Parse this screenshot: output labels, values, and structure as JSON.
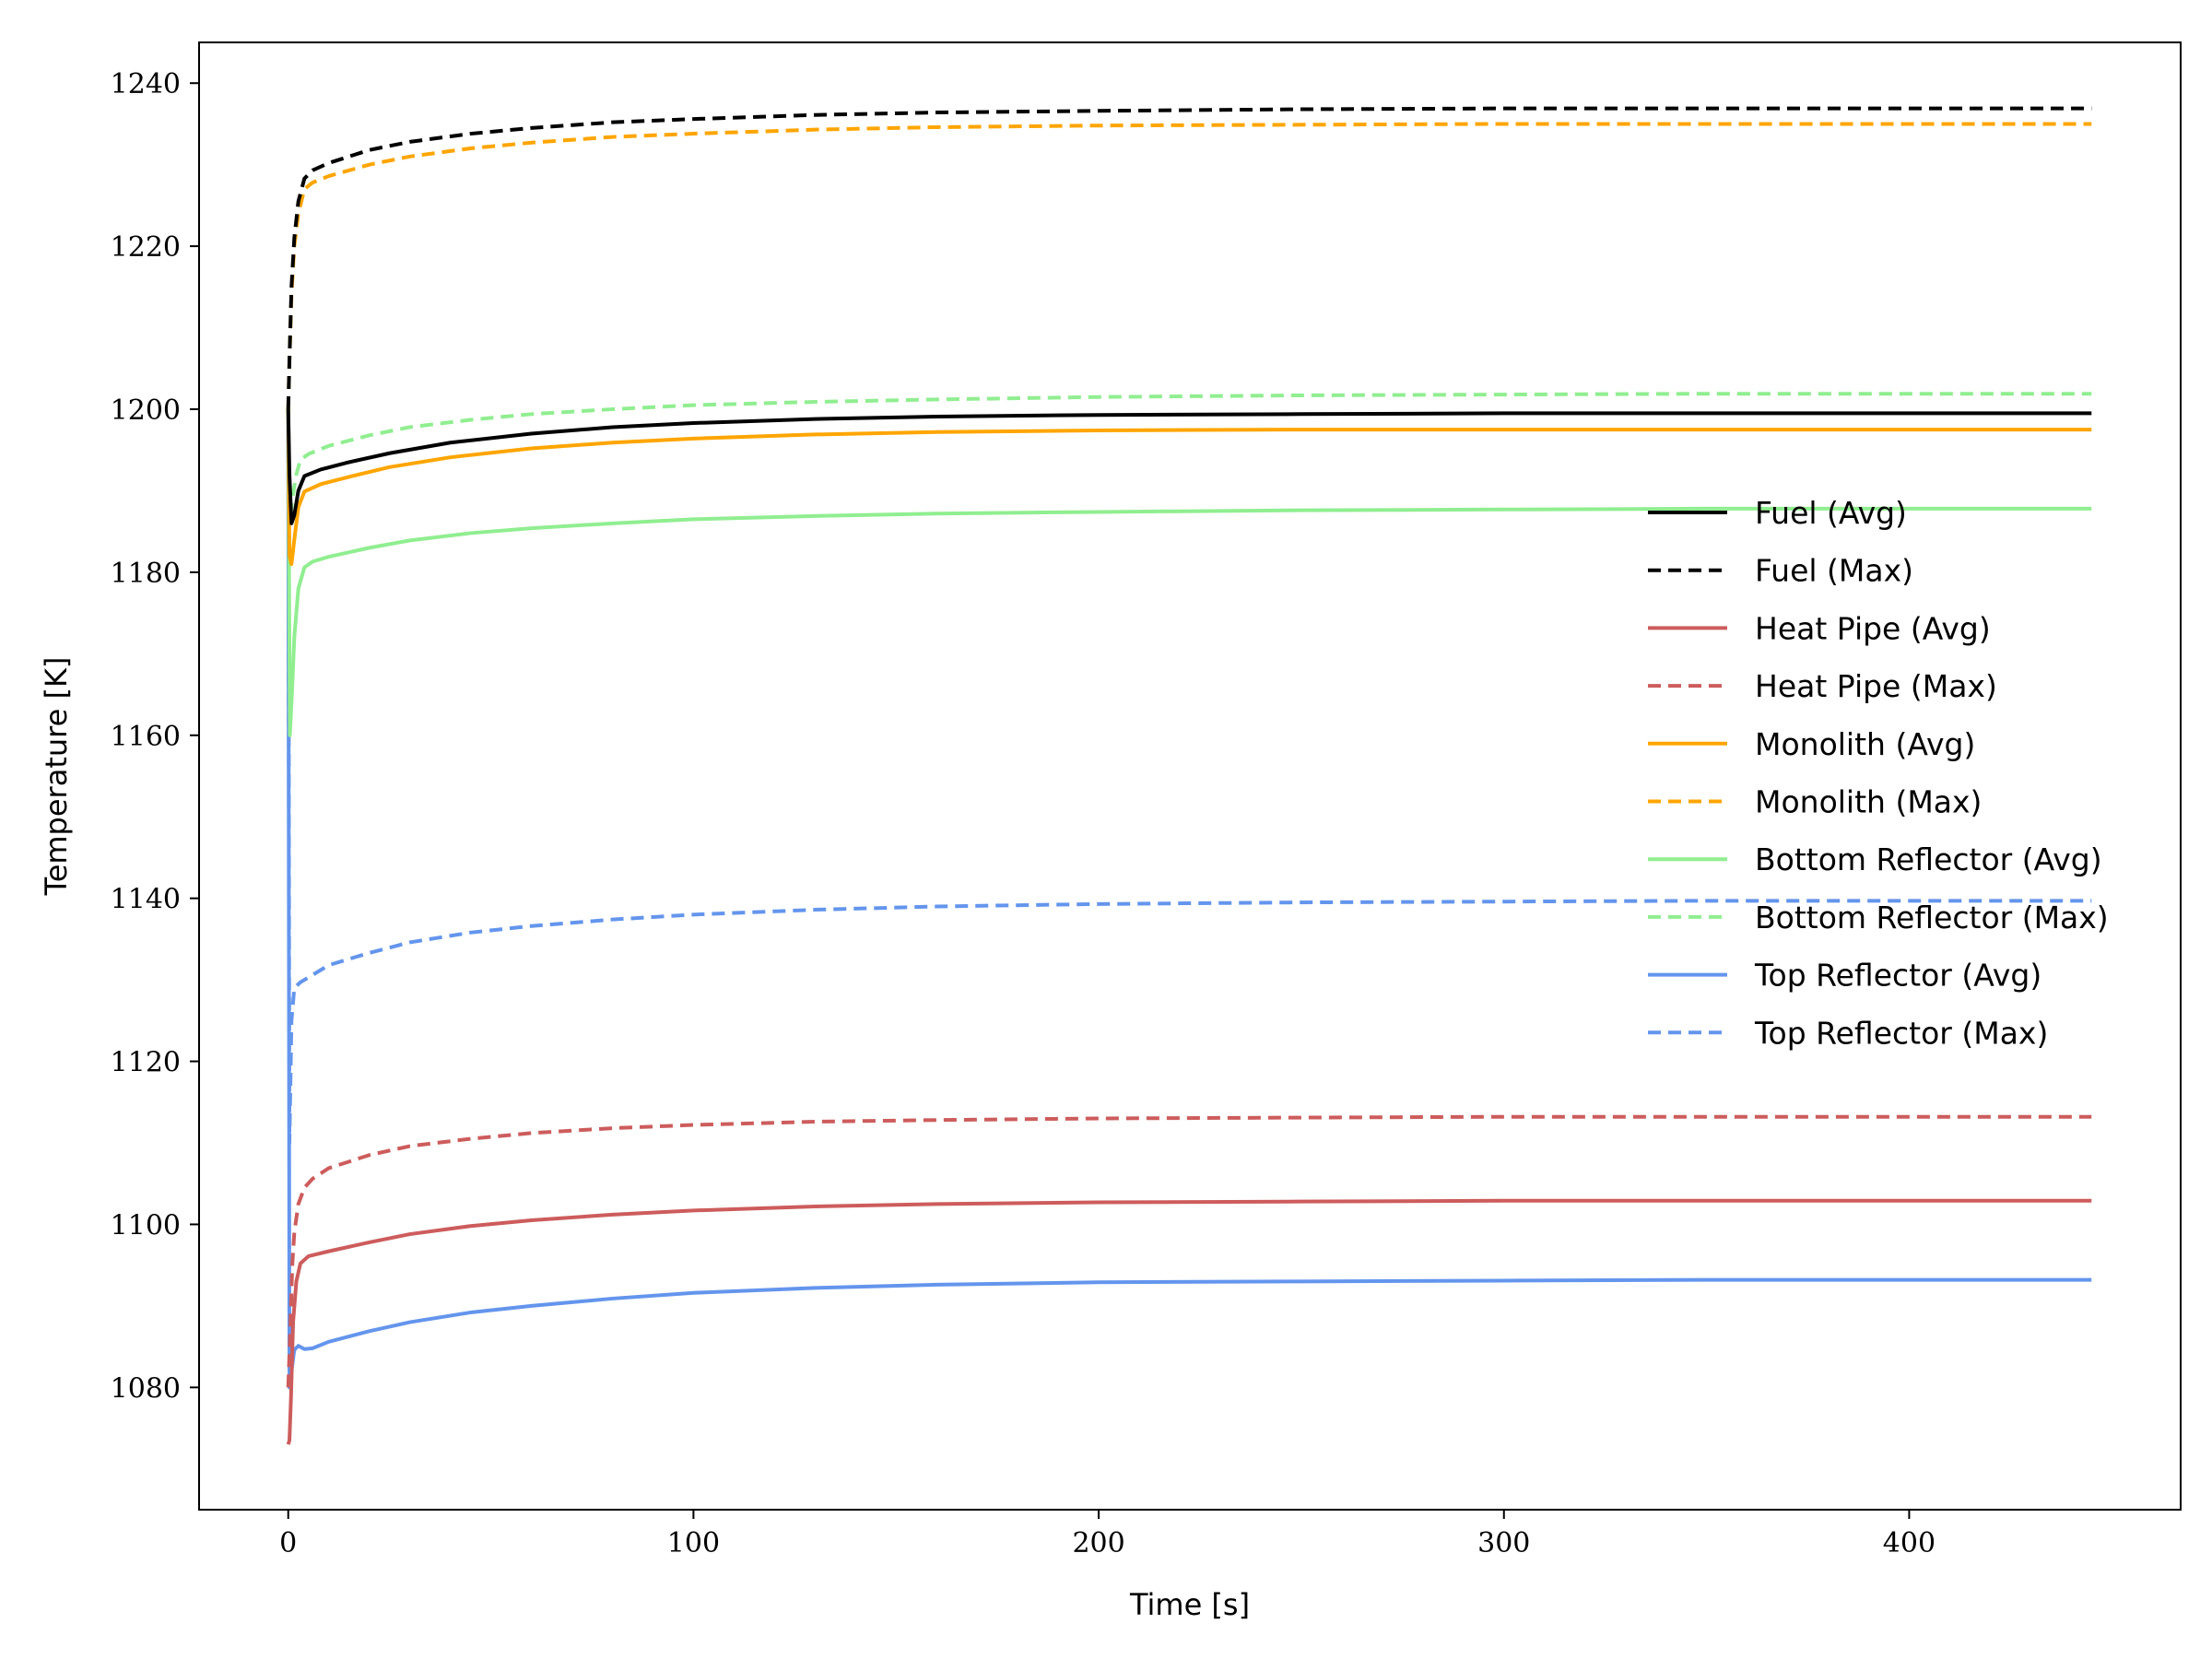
{
  "chart_data": {
    "type": "line",
    "title": "",
    "xlabel": "Time [s]",
    "ylabel": "Temperature [K]",
    "xlim": [
      -22,
      467
    ],
    "ylim": [
      1065,
      1245
    ],
    "xticks": [
      0,
      100,
      200,
      300,
      400
    ],
    "yticks": [
      1080,
      1100,
      1120,
      1140,
      1160,
      1180,
      1200,
      1220,
      1240
    ],
    "grid": false,
    "legend_position": "center-right",
    "series": [
      {
        "name": "Fuel (Avg)",
        "color": "#000000",
        "dash": "solid",
        "points": [
          [
            0,
            1200
          ],
          [
            0.3,
            1192
          ],
          [
            0.8,
            1186
          ],
          [
            1.5,
            1187
          ],
          [
            2.5,
            1190
          ],
          [
            4,
            1191.8
          ],
          [
            8,
            1192.6
          ],
          [
            15,
            1193.5
          ],
          [
            25,
            1194.6
          ],
          [
            40,
            1195.9
          ],
          [
            60,
            1197
          ],
          [
            80,
            1197.8
          ],
          [
            100,
            1198.3
          ],
          [
            130,
            1198.8
          ],
          [
            160,
            1199.1
          ],
          [
            200,
            1199.3
          ],
          [
            250,
            1199.4
          ],
          [
            300,
            1199.5
          ],
          [
            350,
            1199.5
          ],
          [
            400,
            1199.5
          ],
          [
            445,
            1199.5
          ]
        ]
      },
      {
        "name": "Fuel (Max)",
        "color": "#000000",
        "dash": "dashed",
        "points": [
          [
            0,
            1200
          ],
          [
            0.3,
            1206
          ],
          [
            0.8,
            1215
          ],
          [
            1.5,
            1221
          ],
          [
            2.5,
            1225.5
          ],
          [
            4,
            1228.3
          ],
          [
            6,
            1229.3
          ],
          [
            10,
            1230.2
          ],
          [
            20,
            1231.8
          ],
          [
            30,
            1232.8
          ],
          [
            45,
            1233.8
          ],
          [
            60,
            1234.5
          ],
          [
            80,
            1235.2
          ],
          [
            100,
            1235.6
          ],
          [
            130,
            1236.1
          ],
          [
            160,
            1236.4
          ],
          [
            200,
            1236.6
          ],
          [
            250,
            1236.8
          ],
          [
            300,
            1236.9
          ],
          [
            350,
            1236.9
          ],
          [
            400,
            1236.9
          ],
          [
            445,
            1236.9
          ]
        ]
      },
      {
        "name": "Heat Pipe (Avg)",
        "color": "#cd5c5c",
        "dash": "solid",
        "points": [
          [
            0,
            1073
          ],
          [
            0.3,
            1073.5
          ],
          [
            0.7,
            1079
          ],
          [
            1.2,
            1088
          ],
          [
            2,
            1093
          ],
          [
            3,
            1095.2
          ],
          [
            5,
            1096.1
          ],
          [
            10,
            1096.7
          ],
          [
            20,
            1097.8
          ],
          [
            30,
            1098.8
          ],
          [
            45,
            1099.8
          ],
          [
            60,
            1100.5
          ],
          [
            80,
            1101.2
          ],
          [
            100,
            1101.7
          ],
          [
            130,
            1102.2
          ],
          [
            160,
            1102.5
          ],
          [
            200,
            1102.7
          ],
          [
            250,
            1102.8
          ],
          [
            300,
            1102.9
          ],
          [
            350,
            1102.9
          ],
          [
            400,
            1102.9
          ],
          [
            445,
            1102.9
          ]
        ]
      },
      {
        "name": "Heat Pipe (Max)",
        "color": "#cd5c5c",
        "dash": "dashed",
        "points": [
          [
            0,
            1080
          ],
          [
            0.5,
            1087
          ],
          [
            1,
            1095
          ],
          [
            1.5,
            1099
          ],
          [
            2.5,
            1102.5
          ],
          [
            4,
            1104.5
          ],
          [
            6,
            1105.6
          ],
          [
            10,
            1106.9
          ],
          [
            20,
            1108.5
          ],
          [
            30,
            1109.6
          ],
          [
            45,
            1110.5
          ],
          [
            60,
            1111.2
          ],
          [
            80,
            1111.8
          ],
          [
            100,
            1112.2
          ],
          [
            130,
            1112.6
          ],
          [
            160,
            1112.8
          ],
          [
            200,
            1113
          ],
          [
            250,
            1113.1
          ],
          [
            300,
            1113.2
          ],
          [
            350,
            1113.2
          ],
          [
            400,
            1113.2
          ],
          [
            445,
            1113.2
          ]
        ]
      },
      {
        "name": "Monolith (Avg)",
        "color": "#ffa500",
        "dash": "solid",
        "points": [
          [
            0,
            1200
          ],
          [
            0.3,
            1182
          ],
          [
            0.8,
            1181
          ],
          [
            1.5,
            1184
          ],
          [
            2.5,
            1188
          ],
          [
            4,
            1189.9
          ],
          [
            8,
            1190.8
          ],
          [
            15,
            1191.7
          ],
          [
            25,
            1192.9
          ],
          [
            40,
            1194.1
          ],
          [
            60,
            1195.2
          ],
          [
            80,
            1195.9
          ],
          [
            100,
            1196.4
          ],
          [
            130,
            1196.9
          ],
          [
            160,
            1197.2
          ],
          [
            200,
            1197.4
          ],
          [
            250,
            1197.5
          ],
          [
            300,
            1197.5
          ],
          [
            350,
            1197.5
          ],
          [
            400,
            1197.5
          ],
          [
            445,
            1197.5
          ]
        ]
      },
      {
        "name": "Monolith (Max)",
        "color": "#ffa500",
        "dash": "dashed",
        "points": [
          [
            0,
            1200
          ],
          [
            0.3,
            1206
          ],
          [
            0.8,
            1214
          ],
          [
            1.5,
            1220
          ],
          [
            2.5,
            1224
          ],
          [
            4,
            1227
          ],
          [
            6,
            1227.8
          ],
          [
            10,
            1228.6
          ],
          [
            20,
            1230
          ],
          [
            30,
            1231
          ],
          [
            45,
            1232
          ],
          [
            60,
            1232.7
          ],
          [
            80,
            1233.4
          ],
          [
            100,
            1233.8
          ],
          [
            130,
            1234.3
          ],
          [
            160,
            1234.6
          ],
          [
            200,
            1234.8
          ],
          [
            250,
            1234.9
          ],
          [
            300,
            1235
          ],
          [
            350,
            1235
          ],
          [
            400,
            1235
          ],
          [
            445,
            1235
          ]
        ]
      },
      {
        "name": "Bottom Reflector (Avg)",
        "color": "#90ee90",
        "dash": "solid",
        "points": [
          [
            0,
            1200
          ],
          [
            0.4,
            1160
          ],
          [
            0.9,
            1165
          ],
          [
            1.5,
            1172
          ],
          [
            2.5,
            1178
          ],
          [
            4,
            1180.6
          ],
          [
            6,
            1181.3
          ],
          [
            10,
            1181.9
          ],
          [
            20,
            1183
          ],
          [
            30,
            1183.9
          ],
          [
            45,
            1184.8
          ],
          [
            60,
            1185.4
          ],
          [
            80,
            1186
          ],
          [
            100,
            1186.5
          ],
          [
            130,
            1186.9
          ],
          [
            160,
            1187.2
          ],
          [
            200,
            1187.4
          ],
          [
            250,
            1187.6
          ],
          [
            300,
            1187.7
          ],
          [
            350,
            1187.8
          ],
          [
            400,
            1187.8
          ],
          [
            445,
            1187.8
          ]
        ]
      },
      {
        "name": "Bottom Reflector (Max)",
        "color": "#90ee90",
        "dash": "dashed",
        "points": [
          [
            0,
            1200
          ],
          [
            0.4,
            1186
          ],
          [
            1,
            1189
          ],
          [
            2,
            1192
          ],
          [
            3,
            1193.8
          ],
          [
            5,
            1194.5
          ],
          [
            10,
            1195.5
          ],
          [
            20,
            1196.8
          ],
          [
            30,
            1197.8
          ],
          [
            45,
            1198.7
          ],
          [
            60,
            1199.4
          ],
          [
            80,
            1200
          ],
          [
            100,
            1200.5
          ],
          [
            130,
            1200.9
          ],
          [
            160,
            1201.2
          ],
          [
            200,
            1201.5
          ],
          [
            250,
            1201.7
          ],
          [
            300,
            1201.8
          ],
          [
            350,
            1201.9
          ],
          [
            400,
            1201.9
          ],
          [
            445,
            1201.9
          ]
        ]
      },
      {
        "name": "Top Reflector (Avg)",
        "color": "#6495ed",
        "dash": "solid",
        "points": [
          [
            0,
            1200
          ],
          [
            0.3,
            1080
          ],
          [
            0.8,
            1082
          ],
          [
            1.5,
            1084.6
          ],
          [
            2.5,
            1085.1
          ],
          [
            4,
            1084.7
          ],
          [
            6,
            1084.8
          ],
          [
            10,
            1085.6
          ],
          [
            20,
            1086.9
          ],
          [
            30,
            1088
          ],
          [
            45,
            1089.2
          ],
          [
            60,
            1090
          ],
          [
            80,
            1090.9
          ],
          [
            100,
            1091.6
          ],
          [
            130,
            1092.2
          ],
          [
            160,
            1092.6
          ],
          [
            200,
            1092.9
          ],
          [
            250,
            1093
          ],
          [
            300,
            1093.1
          ],
          [
            350,
            1093.2
          ],
          [
            400,
            1093.2
          ],
          [
            445,
            1093.2
          ]
        ]
      },
      {
        "name": "Top Reflector (Max)",
        "color": "#6495ed",
        "dash": "dashed",
        "points": [
          [
            0,
            1200
          ],
          [
            0.3,
            1110
          ],
          [
            0.8,
            1125
          ],
          [
            1.5,
            1129
          ],
          [
            3,
            1129.7
          ],
          [
            6,
            1130.6
          ],
          [
            10,
            1131.8
          ],
          [
            20,
            1133.3
          ],
          [
            30,
            1134.6
          ],
          [
            45,
            1135.8
          ],
          [
            60,
            1136.6
          ],
          [
            80,
            1137.4
          ],
          [
            100,
            1138
          ],
          [
            130,
            1138.6
          ],
          [
            160,
            1139
          ],
          [
            200,
            1139.3
          ],
          [
            250,
            1139.5
          ],
          [
            300,
            1139.6
          ],
          [
            350,
            1139.7
          ],
          [
            400,
            1139.7
          ],
          [
            445,
            1139.7
          ]
        ]
      }
    ]
  }
}
